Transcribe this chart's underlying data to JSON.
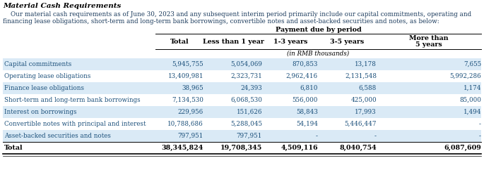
{
  "title": "Material Cash Requirements",
  "para_line1": "    Our material cash requirements as of June 30, 2023 and any subsequent interim period primarily include our capital commitments, operating and",
  "para_line2": "financing lease obligations, short-term and long-term bank borrowings, convertible notes and asset-backed securities and notes, as below:",
  "table_header_main": "Payment due by period",
  "col_headers": [
    "Total",
    "Less than 1 year",
    "1-3 years",
    "3-5 years",
    "More than\n5 years"
  ],
  "sub_header": "(in RMB thousands)",
  "rows": [
    [
      "Capital commitments",
      "5,945,755",
      "5,054,069",
      "870,853",
      "13,178",
      "7,655"
    ],
    [
      "Operating lease obligations",
      "13,409,981",
      "2,323,731",
      "2,962,416",
      "2,131,548",
      "5,992,286"
    ],
    [
      "Finance lease obligations",
      "38,965",
      "24,393",
      "6,810",
      "6,588",
      "1,174"
    ],
    [
      "Short-term and long-term bank borrowings",
      "7,134,530",
      "6,068,530",
      "556,000",
      "425,000",
      "85,000"
    ],
    [
      "Interest on borrowings",
      "229,956",
      "151,626",
      "58,843",
      "17,993",
      "1,494"
    ],
    [
      "Convertible notes with principal and interest",
      "10,788,686",
      "5,288,045",
      "54,194",
      "5,446,447",
      "-"
    ],
    [
      "Asset-backed securities and notes",
      "797,951",
      "797,951",
      "-",
      "-",
      "-"
    ]
  ],
  "total_row": [
    "Total",
    "38,345,824",
    "19,708,345",
    "4,509,116",
    "8,040,754",
    "6,087,609"
  ],
  "row_bg_colors": [
    "#daeaf6",
    "#ffffff",
    "#daeaf6",
    "#ffffff",
    "#daeaf6",
    "#ffffff",
    "#daeaf6"
  ],
  "text_color": "#1a4f7a",
  "title_color": "#000000"
}
